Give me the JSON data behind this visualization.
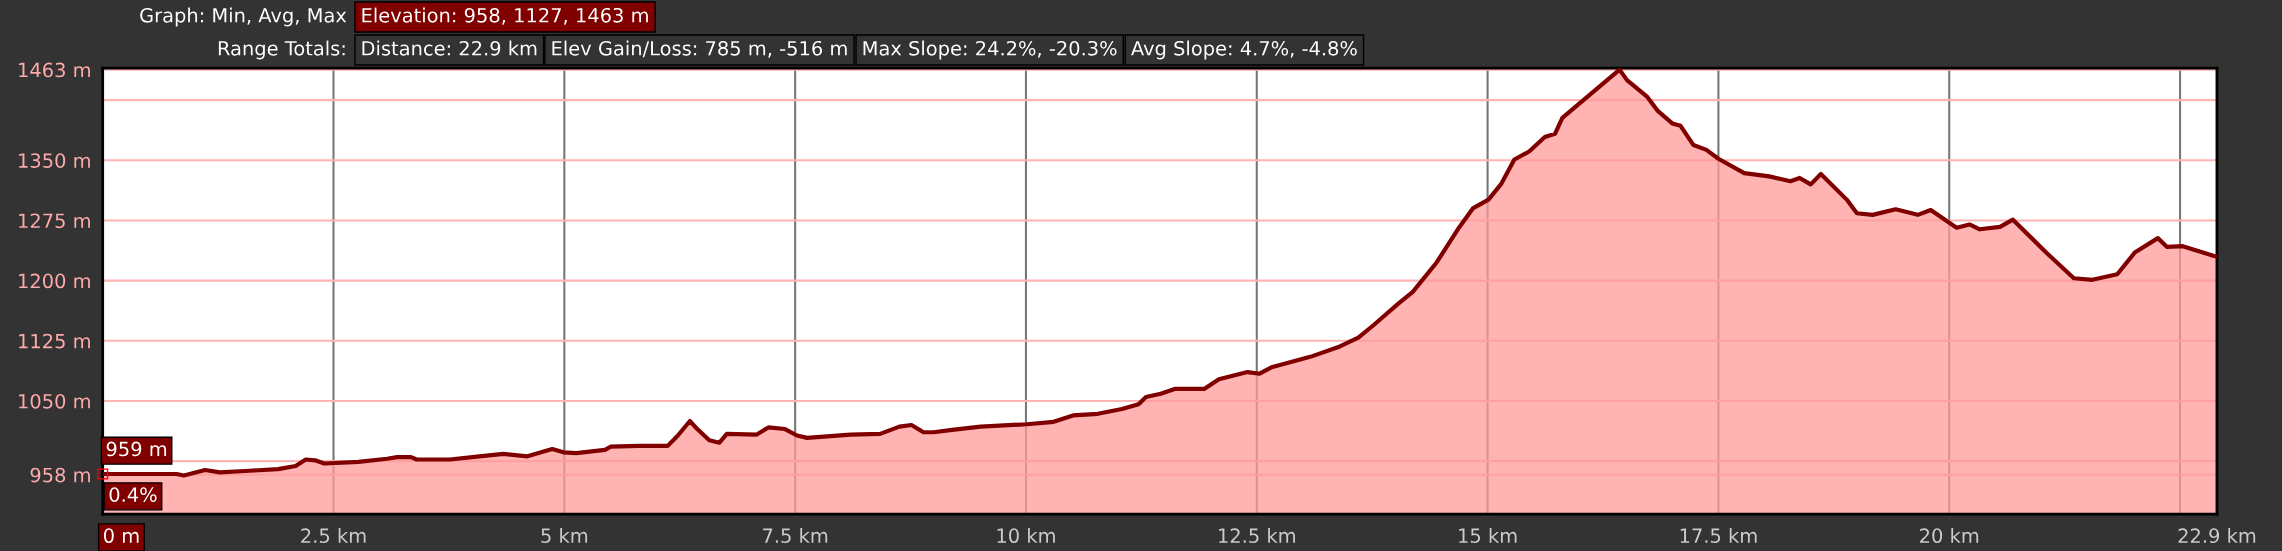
{
  "chart_data": {
    "type": "area",
    "title": "Graph: Min, Avg, Max",
    "subtitle": "Range Totals:",
    "annotations": [
      "Elevation: 958, 1127, 1463 m",
      "Distance: 22.9 km",
      "Elev Gain/Loss: 785 m, -516 m",
      "Max Slope: 24.2%, -20.3%",
      "Avg Slope: 4.7%, -4.8%",
      {
        "text": "959 m",
        "x": 0,
        "y": 959
      },
      "0.4%"
    ],
    "xlim": [
      0,
      22.9
    ],
    "ylim": [
      909,
      1465
    ],
    "xticks": [
      {
        "value": 0,
        "label": "0 m"
      },
      {
        "value": 2.5,
        "label": "2.5 km"
      },
      {
        "value": 5,
        "label": "5 km"
      },
      {
        "value": 7.5,
        "label": "7.5 km"
      },
      {
        "value": 10,
        "label": "10 km"
      },
      {
        "value": 12.5,
        "label": "12.5 km"
      },
      {
        "value": 15,
        "label": "15 km"
      },
      {
        "value": 17.5,
        "label": "17.5 km"
      },
      {
        "value": 20,
        "label": "20 km"
      },
      {
        "value": 22.5,
        "label": null
      },
      {
        "value": 22.9,
        "label": "22.9 km"
      }
    ],
    "yticks": [
      {
        "value": 958,
        "label": "958 m"
      },
      {
        "value": 975,
        "label": null
      },
      {
        "value": 1050,
        "label": "1050 m"
      },
      {
        "value": 1125,
        "label": "1125 m"
      },
      {
        "value": 1200,
        "label": "1200 m"
      },
      {
        "value": 1275,
        "label": "1275 m"
      },
      {
        "value": 1350,
        "label": "1350 m"
      },
      {
        "value": 1425,
        "label": null
      },
      {
        "value": 1463,
        "label": "1463 m"
      }
    ],
    "grid": true,
    "legend": false,
    "line_style": "solid",
    "marker": "none",
    "series": [
      {
        "color": "#800000",
        "x": [
          0,
          0.8,
          0.88,
          1.11,
          1.27,
          1.59,
          1.9,
          2.09,
          2.2,
          2.3,
          2.4,
          2.77,
          3.08,
          3.19,
          3.34,
          3.4,
          3.76,
          4.08,
          4.34,
          4.6,
          4.87,
          4.99,
          5.13,
          5.44,
          5.5,
          5.81,
          6.12,
          6.23,
          6.36,
          6.44,
          6.57,
          6.68,
          6.76,
          7.08,
          7.21,
          7.39,
          7.52,
          7.63,
          8.1,
          8.42,
          8.63,
          8.76,
          8.89,
          9.0,
          9.2,
          9.51,
          10.01,
          10.3,
          10.51,
          10.78,
          11.04,
          11.22,
          11.3,
          11.46,
          11.61,
          11.93,
          12.09,
          12.4,
          12.53,
          12.66,
          13.08,
          13.4,
          13.6,
          13.77,
          14.03,
          14.19,
          14.45,
          14.69,
          14.84,
          15.01,
          15.15,
          15.29,
          15.45,
          15.62,
          15.73,
          15.81,
          16.43,
          16.51,
          16.73,
          16.84,
          17.0,
          17.09,
          17.23,
          17.37,
          17.5,
          17.78,
          18.05,
          18.28,
          18.38,
          18.5,
          18.61,
          18.89,
          19.0,
          19.17,
          19.42,
          19.66,
          19.8,
          20.08,
          20.22,
          20.33,
          20.55,
          20.69,
          21.05,
          21.35,
          21.55,
          21.82,
          22.01,
          22.26,
          22.36,
          22.53,
          22.86,
          22.9
        ],
        "values": [
          959,
          959,
          957,
          964,
          961,
          963,
          965,
          969,
          977,
          976,
          972,
          974,
          978,
          980,
          980,
          977,
          977,
          981,
          984,
          981,
          990,
          986,
          985,
          989,
          993,
          994,
          994,
          1007,
          1025,
          1015,
          1001,
          998,
          1009,
          1008,
          1017,
          1015,
          1007,
          1004,
          1008,
          1009,
          1018,
          1020,
          1011,
          1011,
          1014,
          1018,
          1021,
          1024,
          1032,
          1034,
          1040,
          1046,
          1055,
          1059,
          1065,
          1065,
          1077,
          1086,
          1084,
          1092,
          1105,
          1118,
          1129,
          1145,
          1171,
          1186,
          1223,
          1266,
          1290,
          1301,
          1321,
          1351,
          1361,
          1379,
          1383,
          1403,
          1463,
          1450,
          1429,
          1412,
          1396,
          1393,
          1369,
          1363,
          1352,
          1334,
          1330,
          1324,
          1328,
          1320,
          1333,
          1301,
          1284,
          1282,
          1289,
          1282,
          1288,
          1266,
          1270,
          1264,
          1267,
          1276,
          1235,
          1203,
          1201,
          1208,
          1235,
          1253,
          1242,
          1243,
          1231,
          1230
        ]
      }
    ]
  }
}
